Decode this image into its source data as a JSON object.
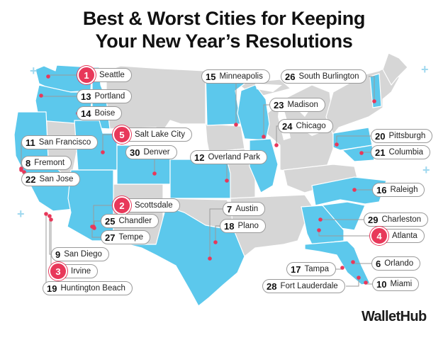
{
  "title_line1": "Best & Worst Cities for Keeping",
  "title_line2": "Your New Year’s Resolutions",
  "brand": "WalletHub",
  "colors": {
    "highlight_state": "#5cc8ec",
    "other_state": "#d6d6d6",
    "top_badge": "#e8385a",
    "marker": "#e8385a"
  },
  "cities": [
    {
      "rank": "1",
      "name": "Seattle",
      "top": true
    },
    {
      "rank": "13",
      "name": "Portland",
      "top": false
    },
    {
      "rank": "14",
      "name": "Boise",
      "top": false
    },
    {
      "rank": "5",
      "name": "Salt Lake City",
      "top": true
    },
    {
      "rank": "11",
      "name": "San Francisco",
      "top": false
    },
    {
      "rank": "30",
      "name": "Denver",
      "top": false
    },
    {
      "rank": "8",
      "name": "Fremont",
      "top": false
    },
    {
      "rank": "22",
      "name": "San Jose",
      "top": false
    },
    {
      "rank": "2",
      "name": "Scottsdale",
      "top": true
    },
    {
      "rank": "25",
      "name": "Chandler",
      "top": false
    },
    {
      "rank": "27",
      "name": "Tempe",
      "top": false
    },
    {
      "rank": "9",
      "name": "San Diego",
      "top": false
    },
    {
      "rank": "3",
      "name": "Irvine",
      "top": true
    },
    {
      "rank": "19",
      "name": "Huntington Beach",
      "top": false
    },
    {
      "rank": "15",
      "name": "Minneapolis",
      "top": false
    },
    {
      "rank": "12",
      "name": "Overland Park",
      "top": false
    },
    {
      "rank": "7",
      "name": "Austin",
      "top": false
    },
    {
      "rank": "18",
      "name": "Plano",
      "top": false
    },
    {
      "rank": "26",
      "name": "South Burlington",
      "top": false
    },
    {
      "rank": "23",
      "name": "Madison",
      "top": false
    },
    {
      "rank": "24",
      "name": "Chicago",
      "top": false
    },
    {
      "rank": "20",
      "name": "Pittsburgh",
      "top": false
    },
    {
      "rank": "21",
      "name": "Columbia",
      "top": false
    },
    {
      "rank": "16",
      "name": "Raleigh",
      "top": false
    },
    {
      "rank": "29",
      "name": "Charleston",
      "top": false
    },
    {
      "rank": "4",
      "name": "Atlanta",
      "top": true
    },
    {
      "rank": "6",
      "name": "Orlando",
      "top": false
    },
    {
      "rank": "17",
      "name": "Tampa",
      "top": false
    },
    {
      "rank": "28",
      "name": "Fort Lauderdale",
      "top": false
    },
    {
      "rank": "10",
      "name": "Miami",
      "top": false
    }
  ]
}
